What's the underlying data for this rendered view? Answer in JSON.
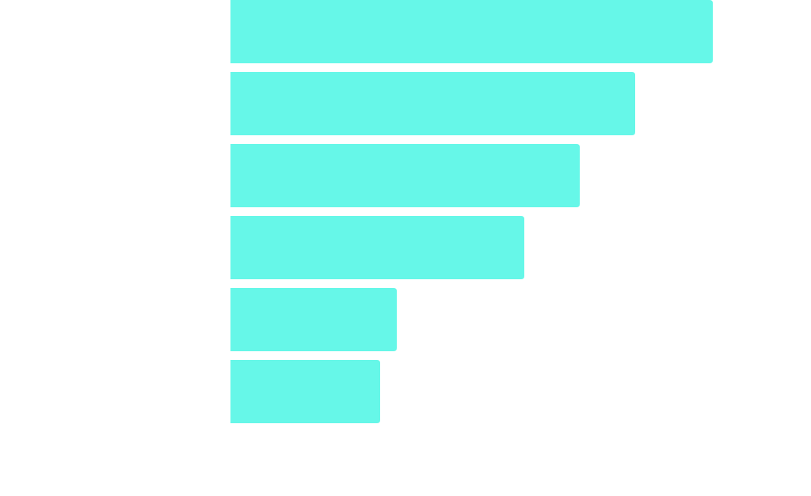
{
  "chart_data": {
    "type": "bar",
    "orientation": "horizontal",
    "categories": [
      "",
      "",
      "",
      "",
      "",
      ""
    ],
    "values": [
      609,
      511,
      441,
      371,
      210,
      189
    ],
    "xlim": [
      0,
      733
    ],
    "color": "#66F7E8",
    "grid": false,
    "title": "",
    "xlabel": "",
    "ylabel": ""
  }
}
